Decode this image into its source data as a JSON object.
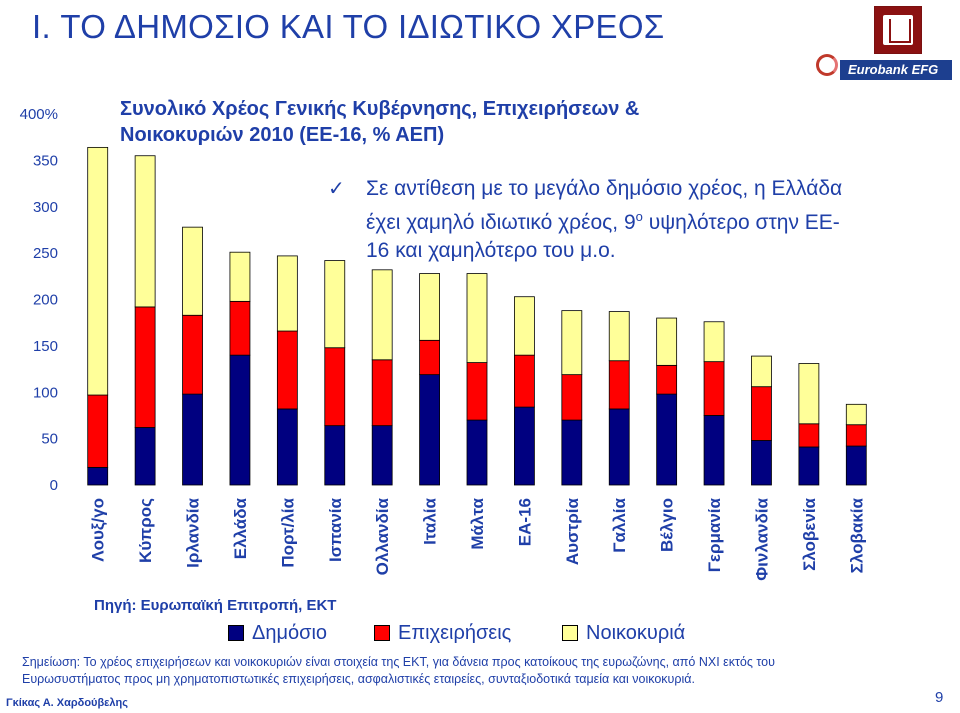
{
  "slide": {
    "title": "I.  ΤΟ ΔΗΜΟΣΙΟ ΚΑΙ ΤΟ ΙΔΙΩΤΙΚΟ ΧΡΕΟΣ",
    "logo_text": "Eurobank EFG",
    "subtitle_line1": "Συνολικό Χρέος Γενικής Κυβέρνησης, Επιχειρήσεων &",
    "subtitle_line2": "Νοικοκυριών 2010 (ΕΕ-16, % ΑΕΠ)",
    "note_check": "✓",
    "note_line1": "Σε αντίθεση με το μεγάλο δημόσιο χρέος, η Ελλάδα",
    "note_line2a": "έχει χαμηλό ιδιωτικό χρέος, 9",
    "note_sup": "ο",
    "note_line2b": " υψηλότερο στην ΕΕ-",
    "note_line3": "16 και χαμηλότερο του μ.ο.",
    "source": "Πηγή: Ευρωπαϊκή Επιτροπή, ΕΚΤ",
    "footnote_line1": "Σημείωση: Το χρέος επιχειρήσεων και νοικοκυριών είναι στοιχεία της ΕΚΤ, για δάνεια προς κατοίκους της ευρωζώνης, από ΝΧΙ εκτός του",
    "footnote_line2": "Ευρωσυστήματος προς μη χρηματοπιστωτικές επιχειρήσεις, ασφαλιστικές εταιρείες, συνταξιοδοτικά ταμεία και νοικοκυριά.",
    "author": "Γκίκας Α. Χαρδούβελης",
    "page_number": "9"
  },
  "colors": {
    "title": "#1f3fa8",
    "public": "#000080",
    "business": "#ff0000",
    "households": "#ffff99"
  },
  "chart_data": {
    "type": "bar",
    "stacked": true,
    "ylim": [
      0,
      400
    ],
    "ytick_labels": [
      "0",
      "50",
      "100",
      "150",
      "200",
      "250",
      "300",
      "350",
      "400%"
    ],
    "yticks": [
      0,
      50,
      100,
      150,
      200,
      250,
      300,
      350,
      400
    ],
    "grid": false,
    "legend_position": "bottom",
    "categories": [
      "Λουξ/γο",
      "Κύπρος",
      "Ιρλανδία",
      "Ελλάδα",
      "Πορτ/λία",
      "Ισπανία",
      "Ολλανδία",
      "Ιταλία",
      "Μάλτα",
      "ΕΑ-16",
      "Αυστρία",
      "Γαλλία",
      "Βέλγιο",
      "Γερμανία",
      "Φινλανδία",
      "Σλοβενία",
      "Σλοβακία"
    ],
    "series": [
      {
        "name": "Δημόσιο",
        "color": "#000080",
        "values": [
          19,
          62,
          98,
          140,
          82,
          64,
          64,
          119,
          70,
          84,
          70,
          82,
          98,
          75,
          48,
          41,
          42
        ]
      },
      {
        "name": "Επιχειρήσεις",
        "color": "#ff0000",
        "values": [
          78,
          130,
          85,
          58,
          84,
          84,
          71,
          37,
          62,
          56,
          49,
          52,
          31,
          58,
          58,
          25,
          23
        ]
      },
      {
        "name": "Νοικοκυριά",
        "color": "#ffff99",
        "values": [
          267,
          163,
          95,
          53,
          81,
          94,
          97,
          72,
          96,
          63,
          69,
          53,
          51,
          43,
          33,
          65,
          22
        ]
      }
    ]
  }
}
